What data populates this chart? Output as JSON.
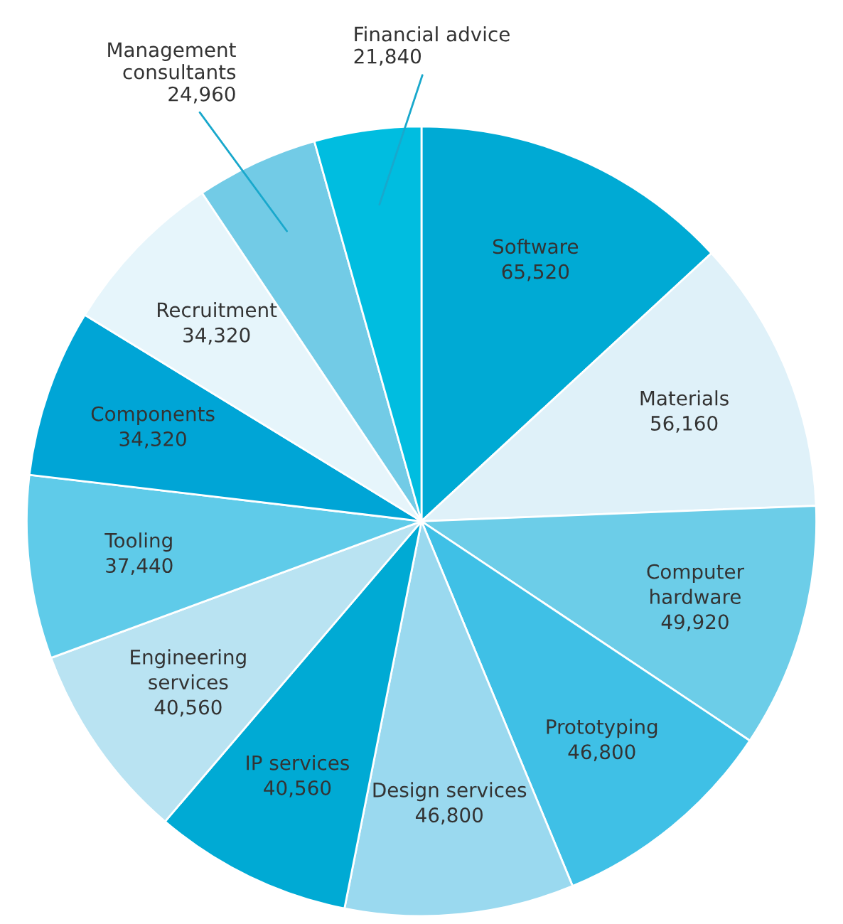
{
  "chart_data": {
    "type": "pie",
    "categories": [
      "Software",
      "Materials",
      "Computer hardware",
      "Prototyping",
      "Design services",
      "IP services",
      "Engineering services",
      "Tooling",
      "Components",
      "Recruitment",
      "Management consultants",
      "Financial advice"
    ],
    "values": [
      65520,
      56160,
      49920,
      46800,
      46800,
      40560,
      40560,
      37440,
      34320,
      34320,
      24960,
      21840
    ],
    "value_labels": [
      "65,520",
      "56,160",
      "49,920",
      "46,800",
      "46,800",
      "40,560",
      "40,560",
      "37,440",
      "34,320",
      "34,320",
      "24,960",
      "21,840"
    ],
    "colors": [
      "#00aad4",
      "#dff1f9",
      "#6ccde8",
      "#3fc0e6",
      "#9ad9ef",
      "#00aad4",
      "#b9e3f2",
      "#5fcbe9",
      "#00a5d6",
      "#e6f5fb",
      "#72cbe6",
      "#00bde0"
    ]
  }
}
